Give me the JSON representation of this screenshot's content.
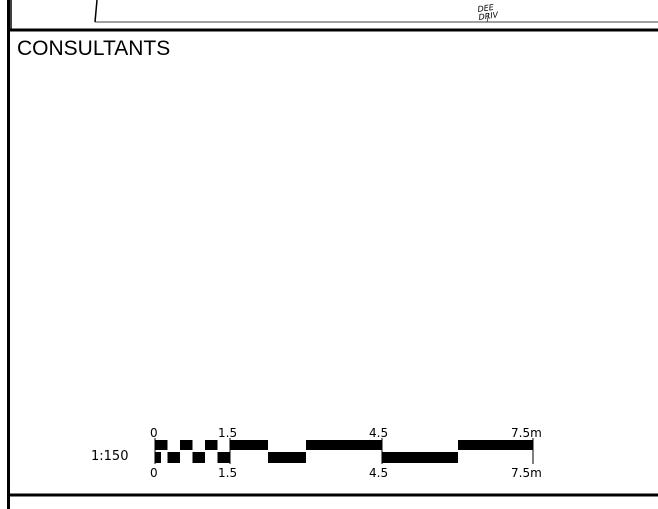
{
  "sheet": {
    "section_title": "CONSULTANTS",
    "top_fragment_line1": "DEE",
    "top_fragment_line2": "DRIV"
  },
  "scale_bar": {
    "ratio_label": "1:150",
    "top_labels": [
      "0",
      "1.5",
      "4.5",
      "7.5m"
    ],
    "bottom_labels": [
      "0",
      "1.5",
      "4.5",
      "7.5m"
    ]
  }
}
